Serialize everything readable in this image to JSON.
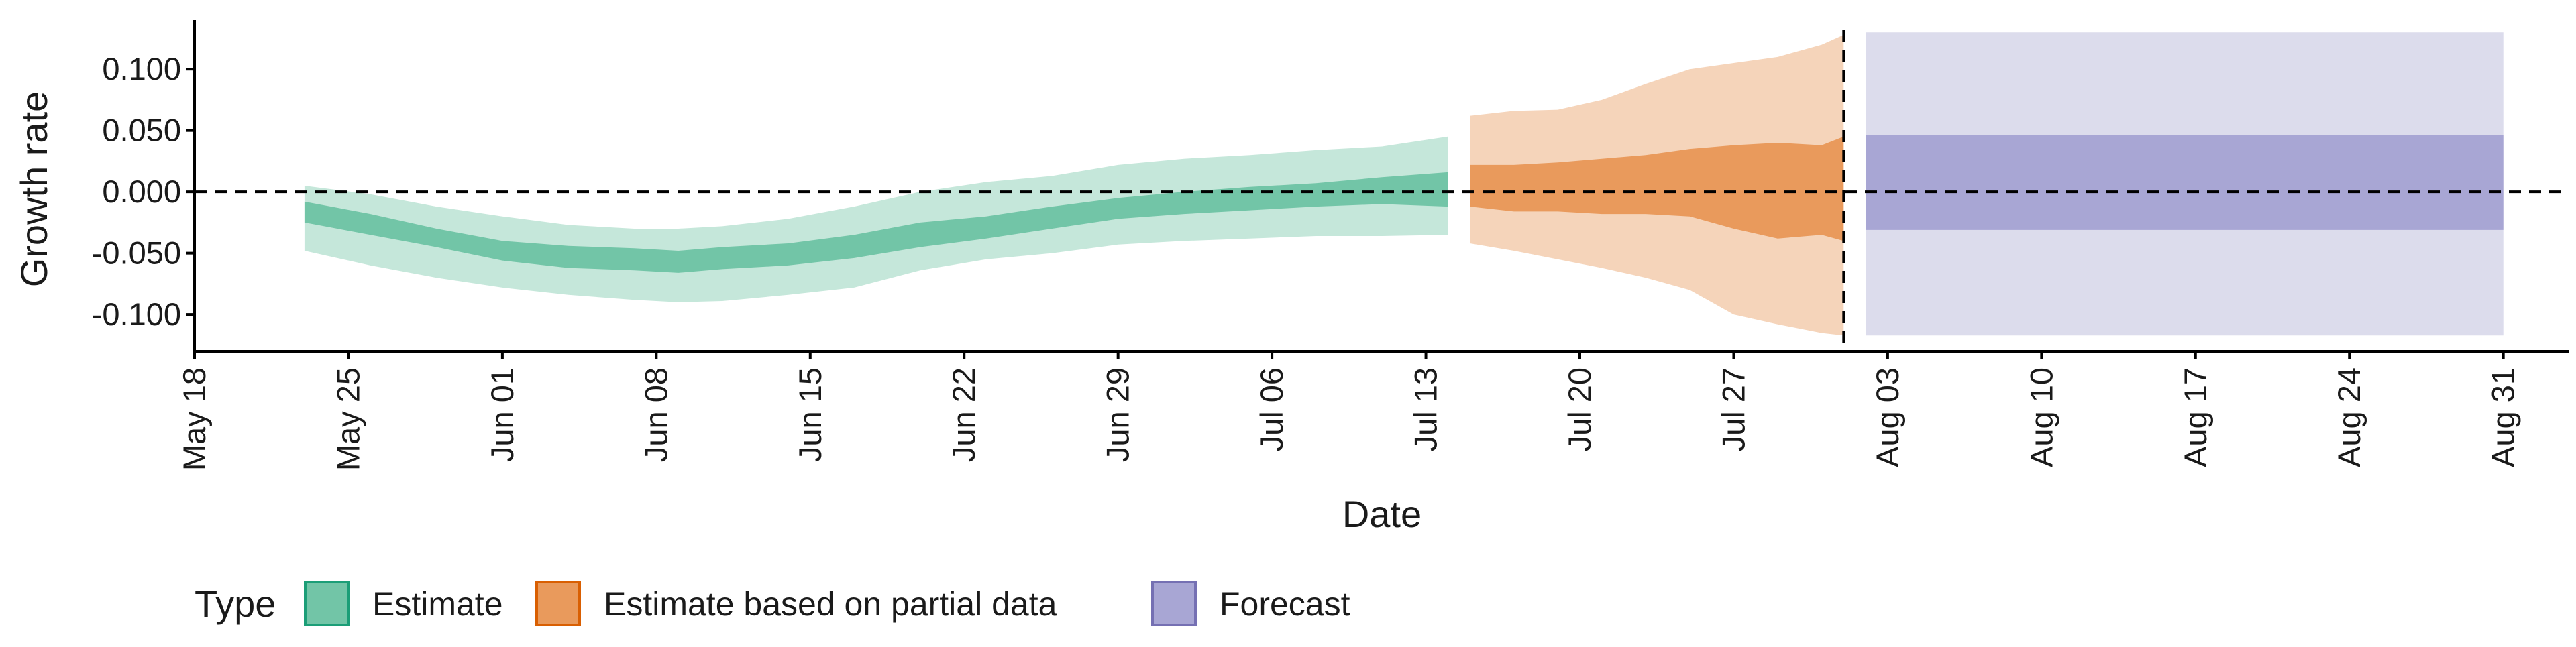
{
  "chart_data": {
    "type": "area",
    "title": "",
    "xlabel": "Date",
    "ylabel": "Growth rate",
    "xlim": [
      "2020-05-18",
      "2020-09-03"
    ],
    "ylim": [
      -0.13,
      0.14
    ],
    "x_ticks": [
      "2020-05-18",
      "2020-05-25",
      "2020-06-01",
      "2020-06-08",
      "2020-06-15",
      "2020-06-22",
      "2020-06-29",
      "2020-07-06",
      "2020-07-13",
      "2020-07-20",
      "2020-07-27",
      "2020-08-03",
      "2020-08-10",
      "2020-08-17",
      "2020-08-24",
      "2020-08-31"
    ],
    "x_tick_labels": [
      "May 18",
      "May 25",
      "Jun 01",
      "Jun 08",
      "Jun 15",
      "Jun 22",
      "Jun 29",
      "Jul 06",
      "Jul 13",
      "Jul 20",
      "Jul 27",
      "Aug 03",
      "Aug 10",
      "Aug 17",
      "Aug 24",
      "Aug 31"
    ],
    "y_ticks": [
      -0.1,
      -0.05,
      0.0,
      0.05,
      0.1
    ],
    "y_tick_labels": [
      "-0.100",
      "-0.050",
      "0.000",
      "0.050",
      "0.100"
    ],
    "hline_y": 0.0,
    "vline_x": "2020-08-01",
    "grid": false,
    "legend": {
      "title": "Type",
      "position": "bottom-left",
      "entries": [
        {
          "label": "Estimate",
          "fill": "#72c5a7",
          "stroke": "#1b9e77"
        },
        {
          "label": "Estimate based on partial data",
          "fill": "#e99a5c",
          "stroke": "#d95f02"
        },
        {
          "label": "Forecast",
          "fill": "#a8a6d4",
          "stroke": "#7570b3"
        }
      ]
    },
    "series": [
      {
        "name": "Estimate",
        "outer_color": "#c5e7da",
        "inner_color": "#72c5a7",
        "dates": [
          "2020-05-23",
          "2020-05-26",
          "2020-05-29",
          "2020-06-01",
          "2020-06-04",
          "2020-06-07",
          "2020-06-09",
          "2020-06-11",
          "2020-06-14",
          "2020-06-17",
          "2020-06-20",
          "2020-06-23",
          "2020-06-26",
          "2020-06-29",
          "2020-07-02",
          "2020-07-05",
          "2020-07-08",
          "2020-07-11",
          "2020-07-14"
        ],
        "outer_upper": [
          0.005,
          -0.002,
          -0.012,
          -0.02,
          -0.027,
          -0.03,
          -0.03,
          -0.028,
          -0.022,
          -0.012,
          0.0,
          0.008,
          0.013,
          0.022,
          0.027,
          0.03,
          0.034,
          0.037,
          0.045
        ],
        "outer_lower": [
          -0.048,
          -0.06,
          -0.07,
          -0.078,
          -0.084,
          -0.088,
          -0.09,
          -0.089,
          -0.084,
          -0.078,
          -0.064,
          -0.055,
          -0.05,
          -0.043,
          -0.04,
          -0.038,
          -0.036,
          -0.036,
          -0.035
        ],
        "inner_upper": [
          -0.008,
          -0.018,
          -0.03,
          -0.04,
          -0.044,
          -0.046,
          -0.048,
          -0.045,
          -0.042,
          -0.035,
          -0.025,
          -0.02,
          -0.012,
          -0.005,
          0.0,
          0.004,
          0.007,
          0.012,
          0.016
        ],
        "inner_lower": [
          -0.025,
          -0.035,
          -0.045,
          -0.056,
          -0.062,
          -0.064,
          -0.066,
          -0.063,
          -0.06,
          -0.054,
          -0.045,
          -0.038,
          -0.03,
          -0.022,
          -0.018,
          -0.015,
          -0.012,
          -0.01,
          -0.012
        ]
      },
      {
        "name": "Estimate based on partial data",
        "outer_color": "#f5d4ba",
        "inner_color": "#e99a5c",
        "dates": [
          "2020-07-15",
          "2020-07-17",
          "2020-07-19",
          "2020-07-21",
          "2020-07-23",
          "2020-07-25",
          "2020-07-27",
          "2020-07-29",
          "2020-07-31",
          "2020-08-01"
        ],
        "outer_upper": [
          0.062,
          0.066,
          0.067,
          0.075,
          0.088,
          0.1,
          0.105,
          0.11,
          0.12,
          0.128
        ],
        "outer_lower": [
          -0.042,
          -0.048,
          -0.055,
          -0.062,
          -0.07,
          -0.08,
          -0.1,
          -0.108,
          -0.115,
          -0.117
        ],
        "inner_upper": [
          0.022,
          0.022,
          0.024,
          0.027,
          0.03,
          0.035,
          0.038,
          0.04,
          0.038,
          0.045
        ],
        "inner_lower": [
          -0.012,
          -0.016,
          -0.016,
          -0.018,
          -0.018,
          -0.02,
          -0.03,
          -0.038,
          -0.035,
          -0.04
        ]
      },
      {
        "name": "Forecast",
        "outer_color": "#dcdcec",
        "inner_color": "#a8a6d4",
        "dates": [
          "2020-08-02",
          "2020-08-31"
        ],
        "outer_upper": [
          0.13,
          0.13
        ],
        "outer_lower": [
          -0.117,
          -0.117
        ],
        "inner_upper": [
          0.046,
          0.046
        ],
        "inner_lower": [
          -0.031,
          -0.031
        ]
      }
    ]
  }
}
